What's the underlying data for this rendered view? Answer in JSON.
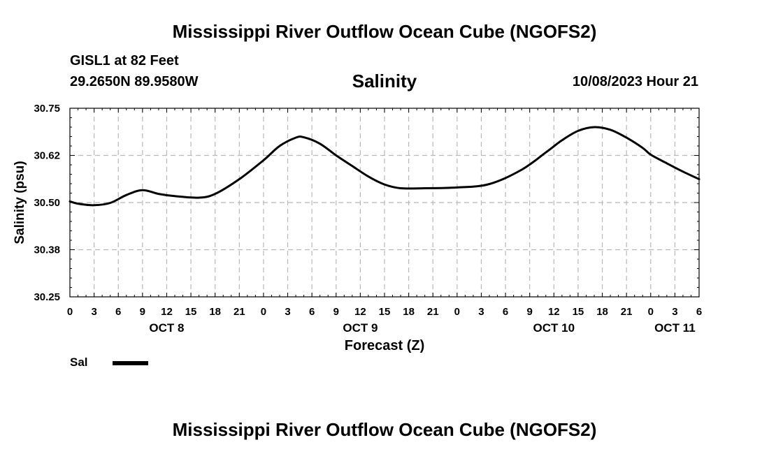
{
  "header": {
    "title": "Mississippi River Outflow Ocean Cube (NGOFS2)",
    "station": "GISL1 at 82 Feet",
    "coords": "29.2650N  89.9580W",
    "datetime": "10/08/2023 Hour 21"
  },
  "footer": {
    "title": "Mississippi River Outflow Ocean Cube (NGOFS2)"
  },
  "legend": {
    "label": "Sal"
  },
  "chart_data": {
    "type": "line",
    "title": "Salinity",
    "xlabel": "Forecast (Z)",
    "ylabel": "Salinity (psu)",
    "x_unit": "hours since OCT 8 00Z",
    "xlim": [
      0,
      78
    ],
    "ylim": [
      30.25,
      30.75
    ],
    "y_ticks": [
      30.25,
      30.375,
      30.5,
      30.625,
      30.75
    ],
    "y_tick_labels": [
      "30.25",
      "30.38",
      "30.50",
      "30.62",
      "30.75"
    ],
    "x_ticks": [
      0,
      3,
      6,
      9,
      12,
      15,
      18,
      21,
      24,
      27,
      30,
      33,
      36,
      39,
      42,
      45,
      48,
      51,
      54,
      57,
      60,
      63,
      66,
      69,
      72,
      75,
      78
    ],
    "x_tick_labels": [
      "0",
      "3",
      "6",
      "9",
      "12",
      "15",
      "18",
      "21",
      "0",
      "3",
      "6",
      "9",
      "12",
      "15",
      "18",
      "21",
      "0",
      "3",
      "6",
      "9",
      "12",
      "15",
      "18",
      "21",
      "0",
      "3",
      "6"
    ],
    "day_labels": [
      {
        "hour": 12,
        "label": "OCT 8"
      },
      {
        "hour": 36,
        "label": "OCT 9"
      },
      {
        "hour": 60,
        "label": "OCT 10"
      },
      {
        "hour": 75,
        "label": "OCT 11"
      }
    ],
    "grid": true,
    "legend_position": "bottom-left",
    "series": [
      {
        "name": "Sal",
        "color": "#000000",
        "x": [
          0,
          1,
          3,
          5,
          7,
          9,
          11,
          13,
          16,
          18,
          21,
          24,
          26,
          28,
          29,
          31,
          33,
          35,
          37,
          39,
          41,
          44,
          48,
          52,
          56,
          59,
          61,
          63,
          65,
          67,
          69,
          71,
          72,
          74,
          76,
          78
        ],
        "y": [
          30.503,
          30.497,
          30.493,
          30.499,
          30.52,
          30.533,
          30.523,
          30.517,
          30.513,
          30.523,
          30.562,
          30.612,
          30.65,
          30.672,
          30.673,
          30.656,
          30.625,
          30.597,
          30.569,
          30.548,
          30.538,
          30.538,
          30.54,
          30.549,
          30.587,
          30.633,
          30.665,
          30.69,
          30.7,
          30.693,
          30.672,
          30.645,
          30.627,
          30.604,
          30.582,
          30.562
        ]
      }
    ]
  }
}
